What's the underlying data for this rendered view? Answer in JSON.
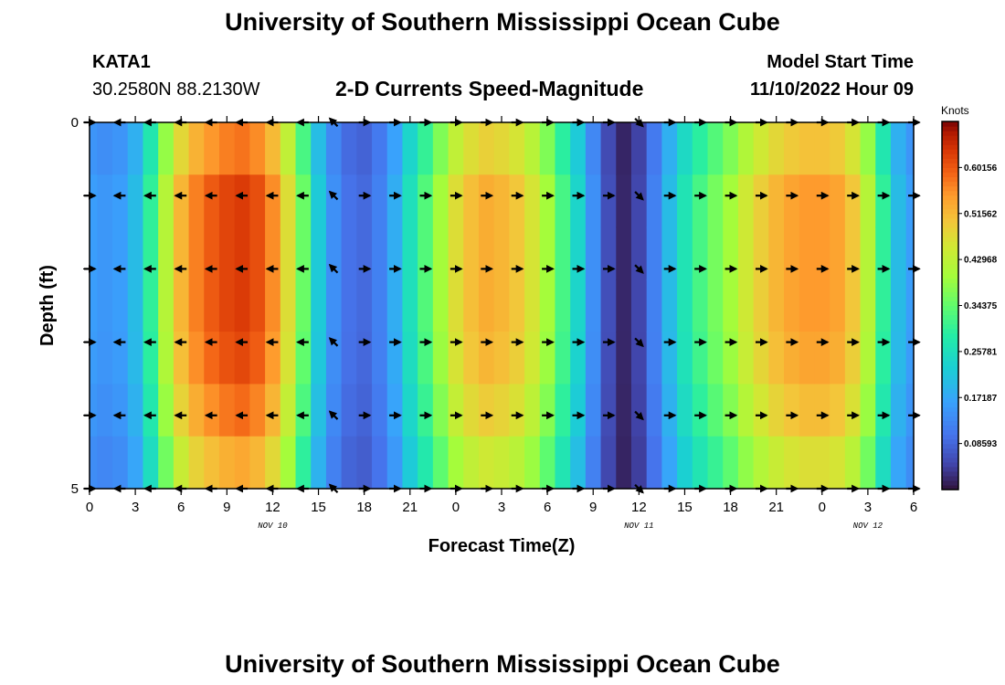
{
  "header": {
    "title": "University of Southern Mississippi Ocean Cube",
    "station": "KATA1",
    "coords": "30.2580N  88.2130W",
    "subtitle": "2-D Currents Speed-Magnitude",
    "model_start_label": "Model Start Time",
    "model_start_value": "11/10/2022 Hour 09"
  },
  "footer": {
    "title": "University of Southern Mississippi Ocean Cube"
  },
  "chart_data": {
    "type": "heatmap",
    "title": "2-D Currents Speed-Magnitude",
    "xlabel": "Forecast Time(Z)",
    "ylabel": "Depth (ft)",
    "y_ticks": [
      "0",
      "5"
    ],
    "ylim": [
      0,
      5
    ],
    "x_tick_labels": [
      "0",
      "3",
      "6",
      "9",
      "12",
      "15",
      "18",
      "21",
      "0",
      "3",
      "6",
      "9",
      "12",
      "15",
      "18",
      "21",
      "0",
      "3",
      "6"
    ],
    "date_labels": [
      {
        "label": "NOV 10",
        "tick_index": 4
      },
      {
        "label": "NOV 11",
        "tick_index": 12
      },
      {
        "label": "NOV 12",
        "tick_index": 17
      }
    ],
    "colorbar": {
      "title": "Knots",
      "min": 0,
      "max": 0.6875,
      "labels": [
        "0.60156",
        "0.51562",
        "0.42968",
        "0.34375",
        "0.25781",
        "0.17187",
        "0.08593"
      ]
    },
    "hours": [
      0,
      1,
      2,
      3,
      4,
      5,
      6,
      7,
      8,
      9,
      10,
      11,
      12,
      13,
      14,
      15,
      16,
      17,
      18,
      19,
      20,
      21,
      22,
      23,
      24,
      25,
      26,
      27,
      28,
      29,
      30,
      31,
      32,
      33,
      34,
      35,
      36,
      37,
      38,
      39,
      40,
      41,
      42,
      43,
      44,
      45,
      46,
      47,
      48,
      49,
      50,
      51,
      52,
      53,
      54
    ],
    "speed_knots": [
      0.16,
      0.15,
      0.16,
      0.2,
      0.3,
      0.42,
      0.52,
      0.57,
      0.6,
      0.62,
      0.63,
      0.61,
      0.56,
      0.47,
      0.35,
      0.22,
      0.14,
      0.1,
      0.09,
      0.12,
      0.18,
      0.26,
      0.33,
      0.4,
      0.47,
      0.51,
      0.53,
      0.52,
      0.5,
      0.46,
      0.4,
      0.32,
      0.24,
      0.14,
      0.06,
      0.02,
      0.05,
      0.12,
      0.2,
      0.27,
      0.32,
      0.36,
      0.4,
      0.45,
      0.49,
      0.52,
      0.54,
      0.55,
      0.55,
      0.54,
      0.5,
      0.42,
      0.3,
      0.2,
      0.16
    ],
    "depth_fade": [
      0.92,
      1.0,
      1.0,
      1.0,
      0.98,
      0.93,
      0.85
    ],
    "vector_angle_deg": [
      0,
      180,
      180,
      180,
      180,
      180,
      180,
      180,
      180,
      180,
      180,
      180,
      180,
      180,
      180,
      225,
      225,
      225,
      0,
      0,
      0,
      0,
      0,
      0,
      0,
      0,
      0,
      0,
      0,
      0,
      0,
      0,
      0,
      0,
      0,
      30,
      45,
      30,
      0,
      0,
      0,
      0,
      0,
      0,
      0,
      0,
      0,
      0,
      0,
      0,
      0,
      0,
      0,
      0,
      0
    ]
  }
}
